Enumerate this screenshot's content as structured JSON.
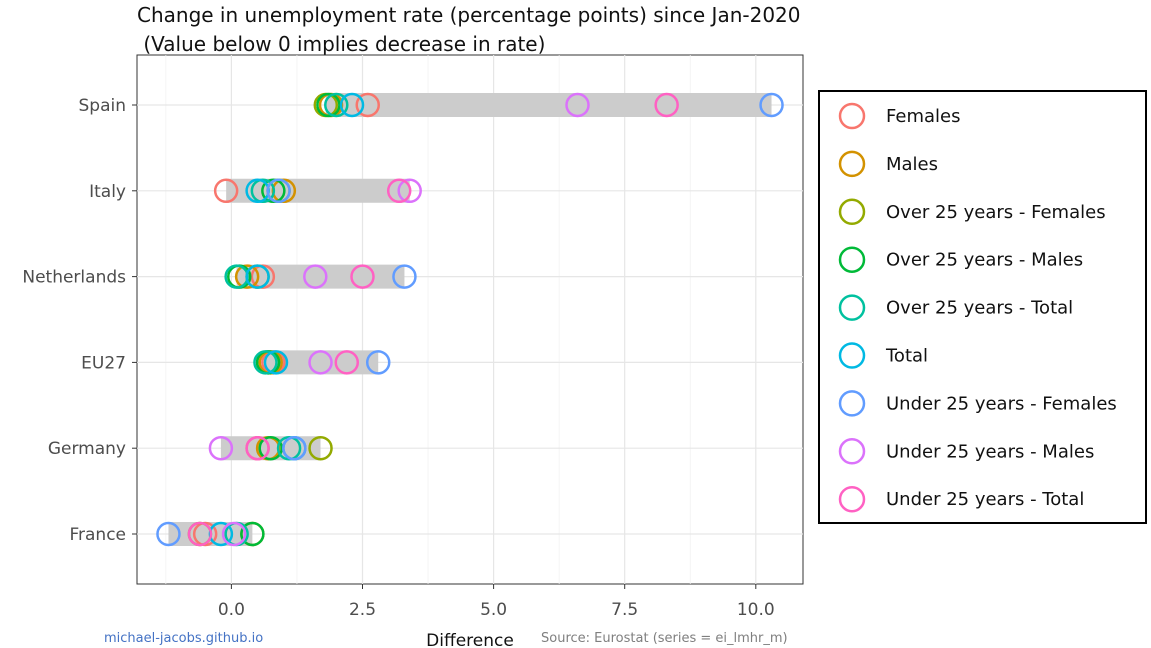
{
  "chart_data": {
    "type": "scatter",
    "title": "Change in unemployment rate (percentage points) since Jan-2020",
    "subtitle": " (Value below 0 implies decrease in rate)",
    "xlabel": "Difference",
    "ylabel": "",
    "xlim": [
      -1.8,
      10.9
    ],
    "x_ticks": [
      0,
      2.5,
      5,
      7.5,
      10
    ],
    "x_tick_labels": [
      "0.0",
      "2.5",
      "5.0",
      "7.5",
      "10.0"
    ],
    "grid": true,
    "legend_position": "right",
    "countries": [
      "Spain",
      "Italy",
      "Netherlands",
      "EU27",
      "Germany",
      "France"
    ],
    "series": [
      {
        "name": "Females",
        "color": "#F8766D",
        "values": [
          2.6,
          -0.1,
          0.6,
          0.8,
          0.5,
          -0.5
        ]
      },
      {
        "name": "Males",
        "color": "#D39200",
        "values": [
          1.9,
          1.0,
          0.3,
          0.75,
          0.7,
          0.4
        ]
      },
      {
        "name": "Over 25 years - Females",
        "color": "#93AA00",
        "values": [
          1.8,
          0.9,
          0.5,
          0.7,
          1.7,
          -0.6
        ]
      },
      {
        "name": "Over 25 years - Males",
        "color": "#00BA38",
        "values": [
          1.85,
          0.8,
          0.15,
          0.7,
          0.75,
          0.4
        ]
      },
      {
        "name": "Over 25 years - Total",
        "color": "#00C19F",
        "values": [
          2.0,
          0.6,
          0.1,
          0.65,
          1.1,
          0.1
        ]
      },
      {
        "name": "Total",
        "color": "#00B9E3",
        "values": [
          2.3,
          0.5,
          0.5,
          0.85,
          1.2,
          -0.2
        ]
      },
      {
        "name": "Under 25 years - Females",
        "color": "#619CFF",
        "values": [
          10.3,
          0.9,
          3.3,
          2.8,
          1.2,
          -1.2
        ]
      },
      {
        "name": "Under 25 years - Males",
        "color": "#DB72FB",
        "values": [
          6.6,
          3.4,
          1.6,
          1.7,
          -0.2,
          0.05
        ]
      },
      {
        "name": "Under 25 years - Total",
        "color": "#FF61C3",
        "values": [
          8.3,
          3.2,
          2.5,
          2.2,
          0.5,
          -0.6
        ]
      }
    ]
  },
  "footer": {
    "left": "michael-jacobs.github.io",
    "left_color": "#4472c4",
    "right": "Source: Eurostat (series = ei_lmhr_m)",
    "right_color": "#7f7f7f"
  }
}
